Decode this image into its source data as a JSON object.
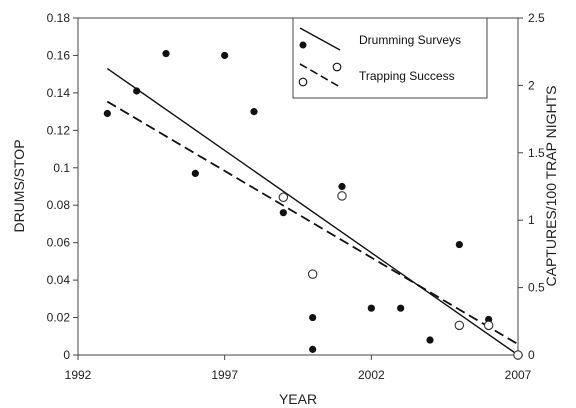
{
  "chart_data": {
    "type": "scatter",
    "xlabel": "YEAR",
    "ylabel_left": "DRUMS/STOP",
    "ylabel_right": "CAPTURES/100 TRAP NIGHTS",
    "xlim": [
      1992,
      2007
    ],
    "ylim_left": [
      0,
      0.18
    ],
    "ylim_right": [
      0,
      2.5
    ],
    "x_ticks": [
      1992,
      1997,
      2002,
      2007
    ],
    "y_ticks_left": [
      0,
      0.02,
      0.04,
      0.06,
      0.08,
      0.1,
      0.12,
      0.14,
      0.16,
      0.18
    ],
    "y_ticks_right": [
      0,
      0.5,
      1,
      1.5,
      2,
      2.5
    ],
    "legend_position": "top-right",
    "series": [
      {
        "name": "Drumming Surveys",
        "axis": "left",
        "marker": "filled-circle",
        "trendline": "solid",
        "points": [
          [
            1993,
            0.129
          ],
          [
            1994,
            0.141
          ],
          [
            1995,
            0.161
          ],
          [
            1996,
            0.097
          ],
          [
            1997,
            0.16
          ],
          [
            1998,
            0.13
          ],
          [
            1999,
            0.076
          ],
          [
            2000,
            0.02
          ],
          [
            2000,
            0.003
          ],
          [
            2001,
            0.09
          ],
          [
            2002,
            0.025
          ],
          [
            2003,
            0.025
          ],
          [
            2004,
            0.008
          ],
          [
            2005,
            0.059
          ],
          [
            2006,
            0.019
          ],
          [
            2007,
            0.0
          ]
        ],
        "fit": [
          [
            1993,
            0.153
          ],
          [
            2007,
            0.0
          ]
        ]
      },
      {
        "name": "Trapping Success",
        "axis": "right",
        "marker": "open-circle",
        "trendline": "dashed",
        "points": [
          [
            1999,
            1.17
          ],
          [
            2000,
            0.6
          ],
          [
            2001,
            1.18
          ],
          [
            2005,
            0.22
          ],
          [
            2006,
            0.22
          ],
          [
            2007,
            0.0
          ]
        ],
        "fit": [
          [
            1993,
            1.88
          ],
          [
            2007,
            0.08
          ]
        ]
      }
    ]
  }
}
